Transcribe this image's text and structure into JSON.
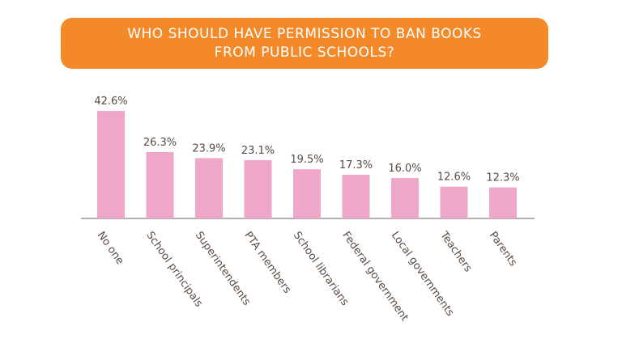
{
  "chart_data": {
    "type": "bar",
    "title": "WHO SHOULD HAVE PERMISSION TO BAN BOOKS FROM PUBLIC SCHOOLS?",
    "categories": [
      "No one",
      "School principals",
      "Superintendents",
      "PTA members",
      "School librarians",
      "Federal government",
      "Local governments",
      "Teachers",
      "Parents"
    ],
    "values": [
      42.6,
      26.3,
      23.9,
      23.1,
      19.5,
      17.3,
      16.0,
      12.6,
      12.3
    ],
    "value_labels": [
      "42.6%",
      "26.3%",
      "23.9%",
      "23.1%",
      "19.5%",
      "17.3%",
      "16.0%",
      "12.6%",
      "12.3%"
    ],
    "color": "#eea7c8",
    "title_color": "#f4892a"
  }
}
